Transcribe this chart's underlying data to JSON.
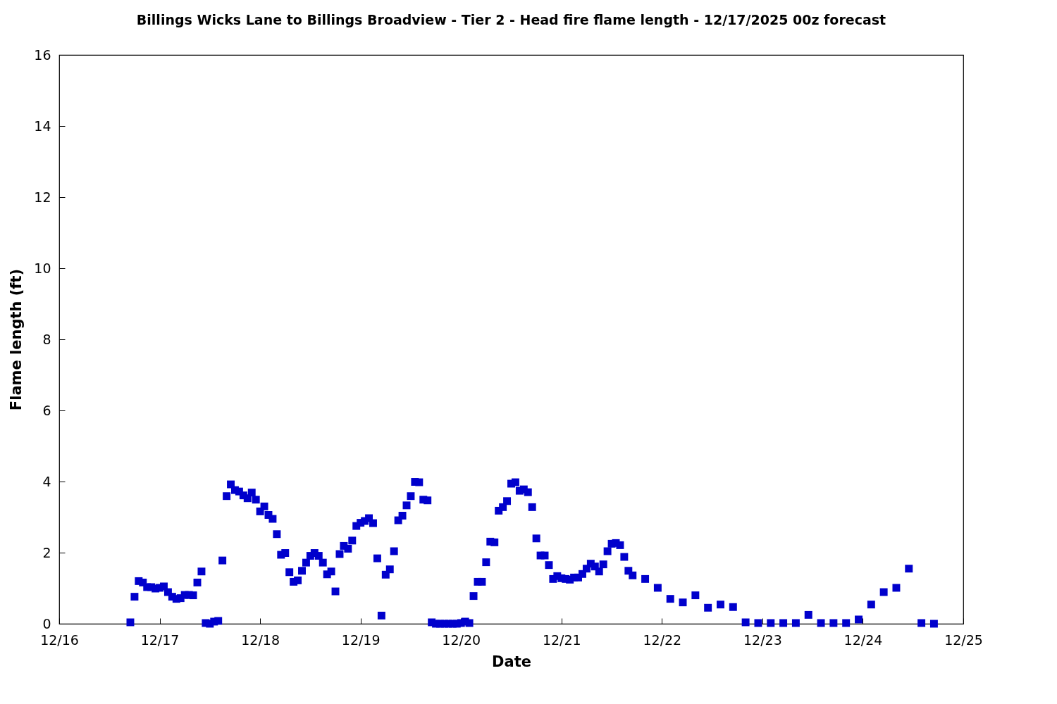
{
  "chart_data": {
    "type": "scatter",
    "title": "Billings Wicks Lane to Billings Broadview - Tier 2 - Head fire flame length - 12/17/2025 00z forecast",
    "xlabel": "Date",
    "ylabel": "Flame length (ft)",
    "marker": "square",
    "x": [
      "2025-12-16T17:00",
      "2025-12-16T18:00",
      "2025-12-16T19:00",
      "2025-12-16T20:00",
      "2025-12-16T21:00",
      "2025-12-16T22:00",
      "2025-12-16T23:00",
      "2025-12-17T00:00",
      "2025-12-17T01:00",
      "2025-12-17T02:00",
      "2025-12-17T03:00",
      "2025-12-17T04:00",
      "2025-12-17T05:00",
      "2025-12-17T06:00",
      "2025-12-17T07:00",
      "2025-12-17T08:00",
      "2025-12-17T09:00",
      "2025-12-17T10:00",
      "2025-12-17T11:00",
      "2025-12-17T12:00",
      "2025-12-17T13:00",
      "2025-12-17T14:00",
      "2025-12-17T15:00",
      "2025-12-17T16:00",
      "2025-12-17T17:00",
      "2025-12-17T18:00",
      "2025-12-17T19:00",
      "2025-12-17T20:00",
      "2025-12-17T21:00",
      "2025-12-17T22:00",
      "2025-12-17T23:00",
      "2025-12-18T00:00",
      "2025-12-18T01:00",
      "2025-12-18T02:00",
      "2025-12-18T03:00",
      "2025-12-18T04:00",
      "2025-12-18T05:00",
      "2025-12-18T06:00",
      "2025-12-18T07:00",
      "2025-12-18T08:00",
      "2025-12-18T09:00",
      "2025-12-18T10:00",
      "2025-12-18T11:00",
      "2025-12-18T12:00",
      "2025-12-18T13:00",
      "2025-12-18T14:00",
      "2025-12-18T15:00",
      "2025-12-18T16:00",
      "2025-12-18T17:00",
      "2025-12-18T18:00",
      "2025-12-18T19:00",
      "2025-12-18T20:00",
      "2025-12-18T21:00",
      "2025-12-18T22:00",
      "2025-12-18T23:00",
      "2025-12-19T00:00",
      "2025-12-19T01:00",
      "2025-12-19T02:00",
      "2025-12-19T03:00",
      "2025-12-19T04:00",
      "2025-12-19T05:00",
      "2025-12-19T06:00",
      "2025-12-19T07:00",
      "2025-12-19T08:00",
      "2025-12-19T09:00",
      "2025-12-19T10:00",
      "2025-12-19T11:00",
      "2025-12-19T12:00",
      "2025-12-19T13:00",
      "2025-12-19T14:00",
      "2025-12-19T15:00",
      "2025-12-19T16:00",
      "2025-12-19T17:00",
      "2025-12-19T18:00",
      "2025-12-19T19:00",
      "2025-12-19T20:00",
      "2025-12-19T21:00",
      "2025-12-19T22:00",
      "2025-12-19T23:00",
      "2025-12-20T00:00",
      "2025-12-20T01:00",
      "2025-12-20T02:00",
      "2025-12-20T03:00",
      "2025-12-20T04:00",
      "2025-12-20T05:00",
      "2025-12-20T06:00",
      "2025-12-20T07:00",
      "2025-12-20T08:00",
      "2025-12-20T09:00",
      "2025-12-20T10:00",
      "2025-12-20T11:00",
      "2025-12-20T12:00",
      "2025-12-20T13:00",
      "2025-12-20T14:00",
      "2025-12-20T15:00",
      "2025-12-20T16:00",
      "2025-12-20T17:00",
      "2025-12-20T18:00",
      "2025-12-20T19:00",
      "2025-12-20T20:00",
      "2025-12-20T21:00",
      "2025-12-20T22:00",
      "2025-12-20T23:00",
      "2025-12-21T00:00",
      "2025-12-21T01:00",
      "2025-12-21T02:00",
      "2025-12-21T03:00",
      "2025-12-21T04:00",
      "2025-12-21T05:00",
      "2025-12-21T06:00",
      "2025-12-21T07:00",
      "2025-12-21T08:00",
      "2025-12-21T09:00",
      "2025-12-21T10:00",
      "2025-12-21T11:00",
      "2025-12-21T12:00",
      "2025-12-21T13:00",
      "2025-12-21T14:00",
      "2025-12-21T15:00",
      "2025-12-21T16:00",
      "2025-12-21T17:00",
      "2025-12-21T20:00",
      "2025-12-21T23:00",
      "2025-12-22T02:00",
      "2025-12-22T05:00",
      "2025-12-22T08:00",
      "2025-12-22T11:00",
      "2025-12-22T14:00",
      "2025-12-22T17:00",
      "2025-12-22T20:00",
      "2025-12-22T23:00",
      "2025-12-23T02:00",
      "2025-12-23T05:00",
      "2025-12-23T08:00",
      "2025-12-23T11:00",
      "2025-12-23T14:00",
      "2025-12-23T17:00",
      "2025-12-23T20:00",
      "2025-12-23T23:00",
      "2025-12-24T02:00",
      "2025-12-24T05:00",
      "2025-12-24T08:00",
      "2025-12-24T11:00",
      "2025-12-24T14:00",
      "2025-12-24T17:00"
    ],
    "series": [
      {
        "color": "#0000cc",
        "values": [
          0.04,
          0.76,
          1.2,
          1.16,
          1.03,
          1.03,
          0.99,
          1.01,
          1.05,
          0.89,
          0.76,
          0.7,
          0.72,
          0.81,
          0.81,
          0.8,
          1.16,
          1.47,
          0.02,
          0,
          0.06,
          0.08,
          1.78,
          3.59,
          3.92,
          3.76,
          3.72,
          3.61,
          3.53,
          3.69,
          3.49,
          3.16,
          3.3,
          3.06,
          2.95,
          2.52,
          1.94,
          1.99,
          1.45,
          1.18,
          1.22,
          1.49,
          1.72,
          1.91,
          1.99,
          1.91,
          1.72,
          1.39,
          1.47,
          0.91,
          1.96,
          2.19,
          2.11,
          2.34,
          2.75,
          2.84,
          2.89,
          2.97,
          2.83,
          1.84,
          0.23,
          1.38,
          1.53,
          2.04,
          2.91,
          3.04,
          3.33,
          3.59,
          3.99,
          3.98,
          3.49,
          3.47,
          0.04,
          0,
          0,
          0,
          0,
          0,
          0,
          0.02,
          0.06,
          0.02,
          0.78,
          1.18,
          1.18,
          1.73,
          2.31,
          2.29,
          3.18,
          3.28,
          3.45,
          3.94,
          3.98,
          3.74,
          3.78,
          3.7,
          3.28,
          2.4,
          1.92,
          1.92,
          1.65,
          1.26,
          1.34,
          1.28,
          1.26,
          1.24,
          1.3,
          1.3,
          1.4,
          1.55,
          1.69,
          1.61,
          1.47,
          1.67,
          2.04,
          2.25,
          2.27,
          2.21,
          1.88,
          1.49,
          1.36,
          1.26,
          1.01,
          0.7,
          0.6,
          0.8,
          0.45,
          0.54,
          0.47,
          0.04,
          0.02,
          0.02,
          0.02,
          0.02,
          0.25,
          0.02,
          0.02,
          0.02,
          0.12,
          0.54,
          0.89,
          1.01,
          1.55,
          0.02,
          0
        ]
      }
    ],
    "xlim": [
      "2025-12-16",
      "2025-12-25"
    ],
    "xticks": [
      {
        "value": "2025-12-16",
        "label": "12/16"
      },
      {
        "value": "2025-12-17",
        "label": "12/17"
      },
      {
        "value": "2025-12-18",
        "label": "12/18"
      },
      {
        "value": "2025-12-19",
        "label": "12/19"
      },
      {
        "value": "2025-12-20",
        "label": "12/20"
      },
      {
        "value": "2025-12-21",
        "label": "12/21"
      },
      {
        "value": "2025-12-22",
        "label": "12/22"
      },
      {
        "value": "2025-12-23",
        "label": "12/23"
      },
      {
        "value": "2025-12-24",
        "label": "12/24"
      },
      {
        "value": "2025-12-25",
        "label": "12/25"
      }
    ],
    "ylim": [
      0,
      16
    ],
    "yticks": [
      0,
      2,
      4,
      6,
      8,
      10,
      12,
      14,
      16
    ]
  }
}
